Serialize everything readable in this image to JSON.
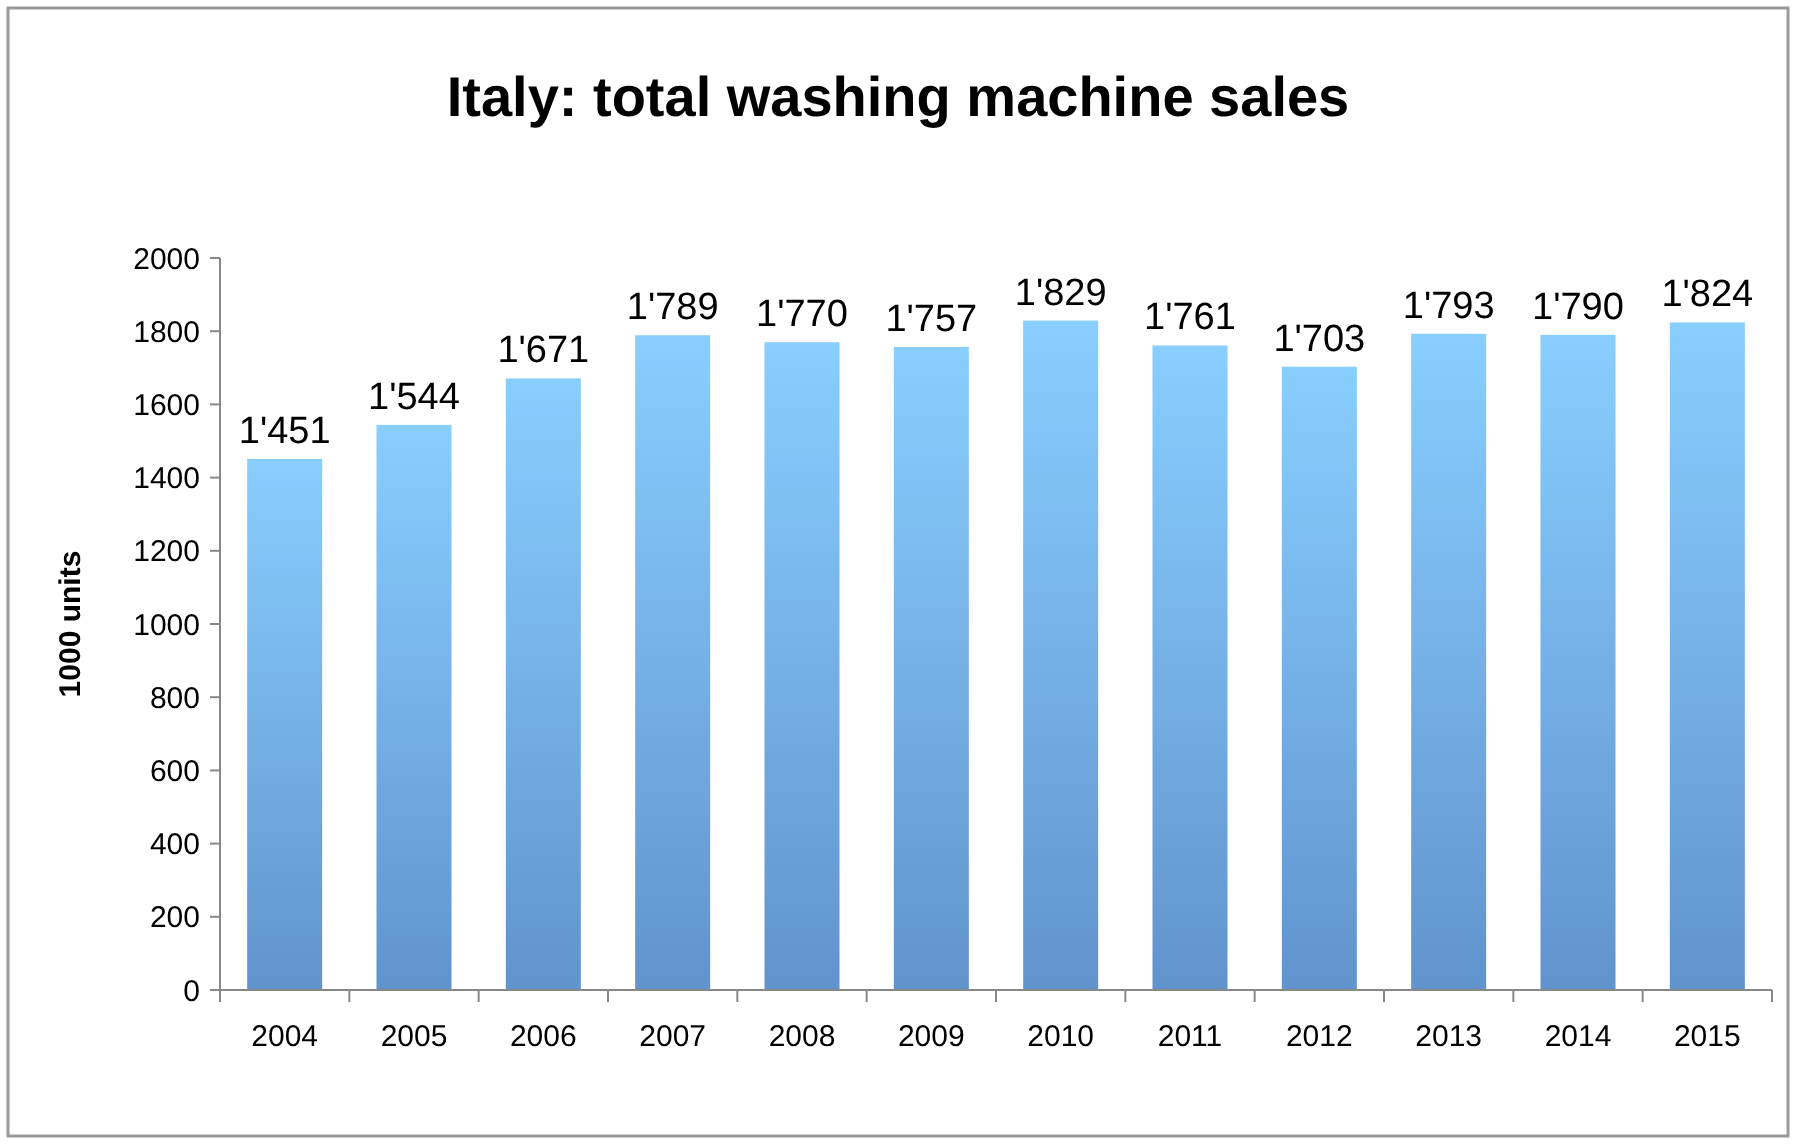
{
  "chart_data": {
    "type": "bar",
    "title": "Italy: total washing machine sales",
    "ylabel": "1000 units",
    "categories": [
      "2004",
      "2005",
      "2006",
      "2007",
      "2008",
      "2009",
      "2010",
      "2011",
      "2012",
      "2013",
      "2014",
      "2015"
    ],
    "values": [
      1451,
      1544,
      1671,
      1789,
      1770,
      1757,
      1829,
      1761,
      1703,
      1793,
      1790,
      1824
    ],
    "value_labels": [
      "1'451",
      "1'544",
      "1'671",
      "1'789",
      "1'770",
      "1'757",
      "1'829",
      "1'761",
      "1'703",
      "1'793",
      "1'790",
      "1'824"
    ],
    "color": "#6ea6e8",
    "ylim": [
      0,
      2000
    ],
    "yticks": [
      0,
      200,
      400,
      600,
      800,
      1000,
      1200,
      1400,
      1600,
      1800,
      2000
    ],
    "grid": false
  }
}
